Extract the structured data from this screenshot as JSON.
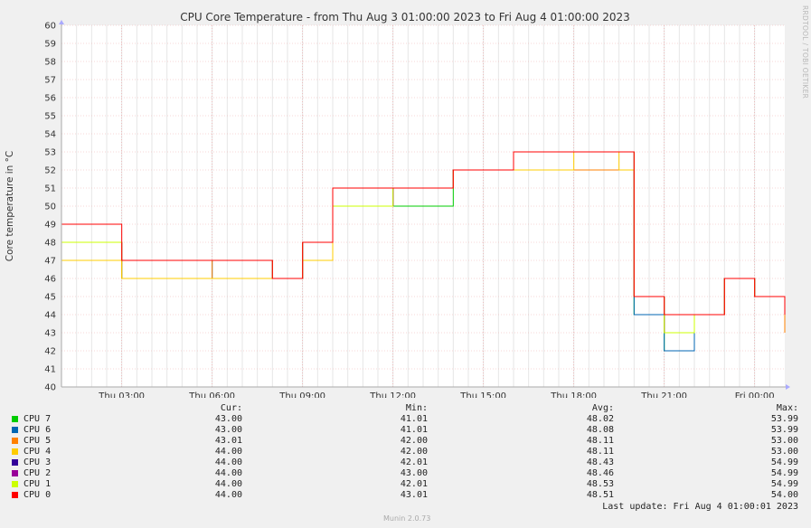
{
  "chart_data": {
    "type": "line",
    "title": "CPU Core Temperature - from Thu Aug  3 01:00:00 2023 to Fri Aug  4 01:00:00 2023",
    "ylabel": "Core temperature in °C",
    "ylim": [
      40,
      60
    ],
    "yticks": [
      "40",
      "41",
      "42",
      "43",
      "44",
      "45",
      "46",
      "47",
      "48",
      "49",
      "50",
      "51",
      "52",
      "53",
      "54",
      "55",
      "56",
      "57",
      "58",
      "59",
      "60"
    ],
    "xlim": [
      "2023-08-03 01:00",
      "2023-08-04 01:00"
    ],
    "xticks": [
      {
        "t": "2023-08-03 03:00",
        "label": "Thu 03:00"
      },
      {
        "t": "2023-08-03 06:00",
        "label": "Thu 06:00"
      },
      {
        "t": "2023-08-03 09:00",
        "label": "Thu 09:00"
      },
      {
        "t": "2023-08-03 12:00",
        "label": "Thu 12:00"
      },
      {
        "t": "2023-08-03 15:00",
        "label": "Thu 15:00"
      },
      {
        "t": "2023-08-03 18:00",
        "label": "Thu 18:00"
      },
      {
        "t": "2023-08-03 21:00",
        "label": "Thu 21:00"
      },
      {
        "t": "2023-08-04 00:00",
        "label": "Fri 00:00"
      }
    ],
    "grid": true,
    "legend_placement": "bottom",
    "series": [
      {
        "name": "CPU 7",
        "color": "#00cc00",
        "cur": "43.00",
        "min": "41.01",
        "avg": "48.02",
        "max": "53.99",
        "x": [
          "2023-08-03 01:00",
          "2023-08-03 03:00",
          "2023-08-03 06:00",
          "2023-08-03 08:00",
          "2023-08-03 09:00",
          "2023-08-03 10:00",
          "2023-08-03 12:00",
          "2023-08-03 14:00",
          "2023-08-03 16:00",
          "2023-08-03 18:00",
          "2023-08-03 19:30",
          "2023-08-03 20:00",
          "2023-08-03 21:00",
          "2023-08-03 22:00",
          "2023-08-03 23:00",
          "2023-08-04 00:00",
          "2023-08-04 01:00"
        ],
        "y": [
          47,
          46,
          46,
          46,
          47,
          50,
          50,
          52,
          52,
          52,
          52,
          44,
          42,
          44,
          46,
          45,
          43
        ]
      },
      {
        "name": "CPU 6",
        "color": "#0066b3",
        "cur": "43.00",
        "min": "41.01",
        "avg": "48.08",
        "max": "53.99",
        "x": [
          "2023-08-03 01:00",
          "2023-08-03 03:00",
          "2023-08-03 06:00",
          "2023-08-03 08:00",
          "2023-08-03 09:00",
          "2023-08-03 10:00",
          "2023-08-03 12:00",
          "2023-08-03 14:00",
          "2023-08-03 16:00",
          "2023-08-03 18:00",
          "2023-08-03 19:30",
          "2023-08-03 20:00",
          "2023-08-03 21:00",
          "2023-08-03 22:00",
          "2023-08-03 23:00",
          "2023-08-04 00:00",
          "2023-08-04 01:00"
        ],
        "y": [
          48,
          46,
          47,
          46,
          48,
          50,
          51,
          52,
          52,
          52,
          52,
          44,
          42,
          44,
          46,
          45,
          43
        ]
      },
      {
        "name": "CPU 5",
        "color": "#ff8000",
        "cur": "43.01",
        "min": "42.00",
        "avg": "48.11",
        "max": "53.00",
        "x": [
          "2023-08-03 01:00",
          "2023-08-03 03:00",
          "2023-08-03 06:00",
          "2023-08-03 08:00",
          "2023-08-03 09:00",
          "2023-08-03 10:00",
          "2023-08-03 12:00",
          "2023-08-03 14:00",
          "2023-08-03 16:00",
          "2023-08-03 18:00",
          "2023-08-03 19:30",
          "2023-08-03 20:00",
          "2023-08-03 21:00",
          "2023-08-03 22:00",
          "2023-08-03 23:00",
          "2023-08-04 00:00",
          "2023-08-04 01:00"
        ],
        "y": [
          48,
          46,
          47,
          46,
          48,
          50,
          51,
          52,
          52,
          52,
          52,
          45,
          43,
          44,
          46,
          45,
          43
        ]
      },
      {
        "name": "CPU 4",
        "color": "#ffcc00",
        "cur": "44.00",
        "min": "42.00",
        "avg": "48.11",
        "max": "53.00",
        "x": [
          "2023-08-03 01:00",
          "2023-08-03 03:00",
          "2023-08-03 06:00",
          "2023-08-03 08:00",
          "2023-08-03 09:00",
          "2023-08-03 10:00",
          "2023-08-03 12:00",
          "2023-08-03 14:00",
          "2023-08-03 16:00",
          "2023-08-03 18:00",
          "2023-08-03 19:30",
          "2023-08-03 20:00",
          "2023-08-03 21:00",
          "2023-08-03 22:00",
          "2023-08-03 23:00",
          "2023-08-04 00:00",
          "2023-08-04 01:00"
        ],
        "y": [
          47,
          46,
          46,
          46,
          47,
          50,
          51,
          52,
          52,
          53,
          52,
          45,
          43,
          44,
          46,
          45,
          44
        ]
      },
      {
        "name": "CPU 3",
        "color": "#330099",
        "cur": "44.00",
        "min": "42.01",
        "avg": "48.43",
        "max": "54.99",
        "x": [
          "2023-08-03 01:00",
          "2023-08-03 03:00",
          "2023-08-03 06:00",
          "2023-08-03 08:00",
          "2023-08-03 09:00",
          "2023-08-03 10:00",
          "2023-08-03 12:00",
          "2023-08-03 14:00",
          "2023-08-03 16:00",
          "2023-08-03 18:00",
          "2023-08-03 19:30",
          "2023-08-03 20:00",
          "2023-08-03 21:00",
          "2023-08-03 22:00",
          "2023-08-03 23:00",
          "2023-08-04 00:00",
          "2023-08-04 01:00"
        ],
        "y": [
          48,
          47,
          47,
          46,
          48,
          50,
          51,
          52,
          53,
          53,
          53,
          45,
          43,
          44,
          46,
          45,
          44
        ]
      },
      {
        "name": "CPU 2",
        "color": "#990099",
        "cur": "44.00",
        "min": "43.00",
        "avg": "48.46",
        "max": "54.99",
        "x": [
          "2023-08-03 01:00",
          "2023-08-03 03:00",
          "2023-08-03 06:00",
          "2023-08-03 08:00",
          "2023-08-03 09:00",
          "2023-08-03 10:00",
          "2023-08-03 12:00",
          "2023-08-03 14:00",
          "2023-08-03 16:00",
          "2023-08-03 18:00",
          "2023-08-03 19:30",
          "2023-08-03 20:00",
          "2023-08-03 21:00",
          "2023-08-03 22:00",
          "2023-08-03 23:00",
          "2023-08-04 00:00",
          "2023-08-04 01:00"
        ],
        "y": [
          48,
          47,
          47,
          46,
          48,
          50,
          51,
          52,
          53,
          53,
          53,
          45,
          44,
          44,
          46,
          45,
          44
        ]
      },
      {
        "name": "CPU 1",
        "color": "#ccff00",
        "cur": "44.00",
        "min": "42.01",
        "avg": "48.53",
        "max": "54.99",
        "x": [
          "2023-08-03 01:00",
          "2023-08-03 03:00",
          "2023-08-03 06:00",
          "2023-08-03 08:00",
          "2023-08-03 09:00",
          "2023-08-03 10:00",
          "2023-08-03 12:00",
          "2023-08-03 14:00",
          "2023-08-03 16:00",
          "2023-08-03 18:00",
          "2023-08-03 19:30",
          "2023-08-03 20:00",
          "2023-08-03 21:00",
          "2023-08-03 22:00",
          "2023-08-03 23:00",
          "2023-08-04 00:00",
          "2023-08-04 01:00"
        ],
        "y": [
          48,
          47,
          47,
          46,
          48,
          50,
          51,
          52,
          53,
          53,
          53,
          45,
          43,
          44,
          46,
          45,
          44
        ]
      },
      {
        "name": "CPU 0",
        "color": "#ff0000",
        "cur": "44.00",
        "min": "43.01",
        "avg": "48.51",
        "max": "54.00",
        "x": [
          "2023-08-03 01:00",
          "2023-08-03 03:00",
          "2023-08-03 06:00",
          "2023-08-03 08:00",
          "2023-08-03 09:00",
          "2023-08-03 10:00",
          "2023-08-03 12:00",
          "2023-08-03 14:00",
          "2023-08-03 16:00",
          "2023-08-03 18:00",
          "2023-08-03 19:30",
          "2023-08-03 20:00",
          "2023-08-03 21:00",
          "2023-08-03 22:00",
          "2023-08-03 23:00",
          "2023-08-04 00:00",
          "2023-08-04 01:00"
        ],
        "y": [
          49,
          47,
          47,
          46,
          48,
          51,
          51,
          52,
          53,
          53,
          53,
          45,
          44,
          44,
          46,
          45,
          44
        ]
      }
    ]
  },
  "legend": {
    "header_cur": "Cur:",
    "header_min": "Min:",
    "header_avg": "Avg:",
    "header_max": "Max:"
  },
  "footer": {
    "last_update": "Last update:  Fri Aug  4 01:00:01 2023",
    "version": "Munin 2.0.73"
  },
  "watermark": "RRDTOOL / TOBI OETIKER"
}
